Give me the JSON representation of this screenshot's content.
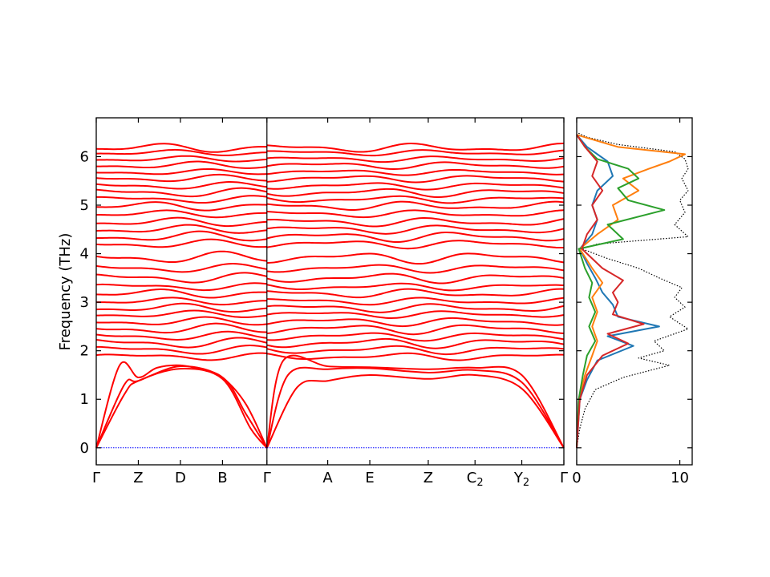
{
  "chart_data": [
    {
      "type": "line",
      "title": "",
      "xlabel": "",
      "ylabel": "Frequency (THz)",
      "ylim": [
        -0.35,
        6.8
      ],
      "y_ticks": [
        0,
        1,
        2,
        3,
        4,
        5,
        6
      ],
      "high_symmetry_points": [
        {
          "label": "Γ",
          "sub": "",
          "k": 0.0
        },
        {
          "label": "Z",
          "sub": "",
          "k": 0.9
        },
        {
          "label": "D",
          "sub": "",
          "k": 1.8
        },
        {
          "label": "B",
          "sub": "",
          "k": 2.7
        },
        {
          "label": "Γ",
          "sub": "",
          "k": 3.65
        },
        {
          "label": "A",
          "sub": "",
          "k": 4.95
        },
        {
          "label": "E",
          "sub": "",
          "k": 5.85
        },
        {
          "label": "Z",
          "sub": "",
          "k": 7.1
        },
        {
          "label": "C",
          "sub": "2",
          "k": 8.1
        },
        {
          "label": "Y",
          "sub": "2",
          "k": 9.1
        },
        {
          "label": "Γ",
          "sub": "",
          "k": 10.0
        }
      ],
      "segments": [
        [
          0,
          3.65
        ],
        [
          3.65,
          10.0
        ]
      ],
      "acoustic_branches": [
        {
          "anchors": [
            [
              0,
              0
            ],
            [
              0.5,
              1.7
            ],
            [
              0.9,
              1.45
            ],
            [
              1.3,
              1.65
            ],
            [
              1.8,
              1.7
            ],
            [
              2.3,
              1.6
            ],
            [
              2.7,
              1.45
            ],
            [
              3.2,
              0.9
            ],
            [
              3.65,
              0
            ]
          ]
        },
        {
          "anchors": [
            [
              0,
              0
            ],
            [
              0.6,
              1.3
            ],
            [
              0.9,
              1.38
            ],
            [
              1.8,
              1.68
            ],
            [
              2.7,
              1.45
            ],
            [
              3.2,
              0.7
            ],
            [
              3.65,
              0
            ]
          ]
        },
        {
          "anchors": [
            [
              0,
              0
            ],
            [
              0.6,
              1.1
            ],
            [
              0.9,
              1.38
            ],
            [
              1.8,
              1.63
            ],
            [
              2.7,
              1.42
            ],
            [
              3.3,
              0.4
            ],
            [
              3.65,
              0
            ]
          ]
        },
        {
          "anchors": [
            [
              3.65,
              0
            ],
            [
              4.3,
              1.25
            ],
            [
              4.95,
              1.38
            ],
            [
              5.85,
              1.5
            ],
            [
              7.1,
              1.42
            ],
            [
              8.1,
              1.5
            ],
            [
              9.1,
              1.22
            ],
            [
              10.0,
              0
            ]
          ]
        },
        {
          "anchors": [
            [
              3.65,
              0
            ],
            [
              4.1,
              1.5
            ],
            [
              4.95,
              1.62
            ],
            [
              5.85,
              1.64
            ],
            [
              7.1,
              1.55
            ],
            [
              8.1,
              1.6
            ],
            [
              9.1,
              1.35
            ],
            [
              10.0,
              0
            ]
          ]
        },
        {
          "anchors": [
            [
              3.65,
              0
            ],
            [
              4.0,
              1.8
            ],
            [
              4.95,
              1.68
            ],
            [
              5.85,
              1.66
            ],
            [
              7.1,
              1.62
            ],
            [
              8.1,
              1.65
            ],
            [
              9.1,
              1.5
            ],
            [
              10.0,
              0
            ]
          ]
        }
      ],
      "optical_branches": [
        {
          "base": 1.88,
          "amp": 0.05,
          "phase": 0.0
        },
        {
          "base": 2.02,
          "amp": 0.06,
          "phase": 0.6
        },
        {
          "base": 2.16,
          "amp": 0.07,
          "phase": 1.2
        },
        {
          "base": 2.3,
          "amp": 0.06,
          "phase": 1.8
        },
        {
          "base": 2.45,
          "amp": 0.07,
          "phase": 2.4
        },
        {
          "base": 2.6,
          "amp": 0.06,
          "phase": 3.0
        },
        {
          "base": 2.75,
          "amp": 0.05,
          "phase": 3.6
        },
        {
          "base": 2.88,
          "amp": 0.06,
          "phase": 4.2
        },
        {
          "base": 3.02,
          "amp": 0.05,
          "phase": 4.8
        },
        {
          "base": 3.18,
          "amp": 0.06,
          "phase": 5.4
        },
        {
          "base": 3.32,
          "amp": 0.05,
          "phase": 0.3
        },
        {
          "base": 3.5,
          "amp": 0.07,
          "phase": 0.9
        },
        {
          "base": 3.7,
          "amp": 0.06,
          "phase": 1.5
        },
        {
          "base": 3.92,
          "amp": 0.08,
          "phase": 2.1
        },
        {
          "base": 4.2,
          "amp": 0.06,
          "phase": 2.7
        },
        {
          "base": 4.35,
          "amp": 0.07,
          "phase": 3.3
        },
        {
          "base": 4.5,
          "amp": 0.06,
          "phase": 3.9
        },
        {
          "base": 4.65,
          "amp": 0.06,
          "phase": 4.5
        },
        {
          "base": 4.82,
          "amp": 0.05,
          "phase": 5.1
        },
        {
          "base": 4.98,
          "amp": 0.06,
          "phase": 5.7
        },
        {
          "base": 5.12,
          "amp": 0.05,
          "phase": 0.45
        },
        {
          "base": 5.26,
          "amp": 0.06,
          "phase": 1.05
        },
        {
          "base": 5.4,
          "amp": 0.05,
          "phase": 1.65
        },
        {
          "base": 5.55,
          "amp": 0.05,
          "phase": 2.25
        },
        {
          "base": 5.68,
          "amp": 0.04,
          "phase": 2.85
        },
        {
          "base": 5.82,
          "amp": 0.05,
          "phase": 3.45
        },
        {
          "base": 5.95,
          "amp": 0.04,
          "phase": 4.05
        },
        {
          "base": 6.08,
          "amp": 0.04,
          "phase": 4.65
        },
        {
          "base": 6.18,
          "amp": 0.06,
          "phase": 5.25
        }
      ],
      "zero_line": {
        "y": 0,
        "color": "#0000ff",
        "style": "dotted"
      },
      "band_color": "#ff0000",
      "grid": false
    },
    {
      "type": "line",
      "title": "",
      "xlabel": "",
      "ylabel": "",
      "xlim": [
        0,
        11.2
      ],
      "x_ticks": [
        0,
        10
      ],
      "ylim": [
        -0.35,
        6.8
      ],
      "series": [
        {
          "style": "dotted",
          "color": "#000000",
          "points": [
            [
              0,
              0
            ],
            [
              0.3,
              0.4
            ],
            [
              0.8,
              0.8
            ],
            [
              1.8,
              1.2
            ],
            [
              4.5,
              1.45
            ],
            [
              9.0,
              1.7
            ],
            [
              6.0,
              1.85
            ],
            [
              8.5,
              2.0
            ],
            [
              7.5,
              2.2
            ],
            [
              10.8,
              2.45
            ],
            [
              9.0,
              2.7
            ],
            [
              10.5,
              2.9
            ],
            [
              9.5,
              3.1
            ],
            [
              10.2,
              3.3
            ],
            [
              8.0,
              3.5
            ],
            [
              6.0,
              3.7
            ],
            [
              3.0,
              3.9
            ],
            [
              0.5,
              4.1
            ],
            [
              2.0,
              4.2
            ],
            [
              10.8,
              4.35
            ],
            [
              9.5,
              4.6
            ],
            [
              10.5,
              4.85
            ],
            [
              10.0,
              5.1
            ],
            [
              10.8,
              5.3
            ],
            [
              10.2,
              5.55
            ],
            [
              10.8,
              5.75
            ],
            [
              10.5,
              5.95
            ],
            [
              9.5,
              6.1
            ],
            [
              4.0,
              6.25
            ],
            [
              1.0,
              6.4
            ],
            [
              0,
              6.5
            ]
          ]
        },
        {
          "color": "#1f77b4",
          "points": [
            [
              0,
              0
            ],
            [
              0.3,
              1.0
            ],
            [
              1.0,
              1.4
            ],
            [
              2.0,
              1.8
            ],
            [
              5.5,
              2.1
            ],
            [
              3.0,
              2.3
            ],
            [
              8.0,
              2.5
            ],
            [
              4.0,
              2.7
            ],
            [
              3.5,
              2.95
            ],
            [
              2.5,
              3.2
            ],
            [
              1.8,
              3.5
            ],
            [
              1.0,
              3.8
            ],
            [
              0.3,
              4.1
            ],
            [
              1.5,
              4.4
            ],
            [
              2.0,
              4.7
            ],
            [
              1.5,
              5.0
            ],
            [
              2.0,
              5.3
            ],
            [
              3.5,
              5.6
            ],
            [
              3.0,
              5.9
            ],
            [
              1.0,
              6.2
            ],
            [
              0,
              6.45
            ]
          ]
        },
        {
          "color": "#ff7f0e",
          "points": [
            [
              0,
              0
            ],
            [
              0.2,
              1.0
            ],
            [
              0.8,
              1.5
            ],
            [
              1.5,
              1.9
            ],
            [
              2.0,
              2.2
            ],
            [
              1.5,
              2.5
            ],
            [
              2.0,
              2.8
            ],
            [
              1.5,
              3.1
            ],
            [
              2.5,
              3.4
            ],
            [
              1.5,
              3.7
            ],
            [
              0.3,
              4.1
            ],
            [
              2.0,
              4.4
            ],
            [
              4.0,
              4.7
            ],
            [
              3.5,
              5.0
            ],
            [
              6.0,
              5.3
            ],
            [
              4.5,
              5.55
            ],
            [
              7.0,
              5.75
            ],
            [
              9.0,
              5.9
            ],
            [
              10.5,
              6.05
            ],
            [
              4.0,
              6.2
            ],
            [
              0,
              6.45
            ]
          ]
        },
        {
          "color": "#2ca02c",
          "points": [
            [
              0,
              0
            ],
            [
              0.2,
              1.0
            ],
            [
              0.6,
              1.5
            ],
            [
              1.0,
              1.9
            ],
            [
              1.8,
              2.2
            ],
            [
              1.2,
              2.5
            ],
            [
              1.8,
              2.8
            ],
            [
              1.2,
              3.1
            ],
            [
              1.5,
              3.4
            ],
            [
              0.8,
              3.7
            ],
            [
              0.2,
              4.1
            ],
            [
              4.5,
              4.3
            ],
            [
              3.0,
              4.6
            ],
            [
              8.5,
              4.9
            ],
            [
              5.0,
              5.1
            ],
            [
              4.0,
              5.35
            ],
            [
              6.0,
              5.55
            ],
            [
              5.0,
              5.75
            ],
            [
              2.0,
              5.95
            ],
            [
              0.8,
              6.2
            ],
            [
              0,
              6.45
            ]
          ]
        },
        {
          "color": "#d62728",
          "points": [
            [
              0,
              0
            ],
            [
              0.3,
              1.0
            ],
            [
              1.0,
              1.5
            ],
            [
              2.5,
              1.9
            ],
            [
              5.0,
              2.15
            ],
            [
              3.0,
              2.35
            ],
            [
              6.5,
              2.55
            ],
            [
              3.5,
              2.75
            ],
            [
              4.0,
              3.0
            ],
            [
              3.5,
              3.2
            ],
            [
              4.5,
              3.45
            ],
            [
              2.5,
              3.7
            ],
            [
              0.5,
              4.1
            ],
            [
              1.0,
              4.4
            ],
            [
              2.0,
              4.7
            ],
            [
              1.5,
              5.0
            ],
            [
              2.5,
              5.3
            ],
            [
              1.5,
              5.6
            ],
            [
              2.0,
              5.9
            ],
            [
              0.8,
              6.2
            ],
            [
              0,
              6.45
            ]
          ]
        }
      ],
      "grid": false
    }
  ]
}
